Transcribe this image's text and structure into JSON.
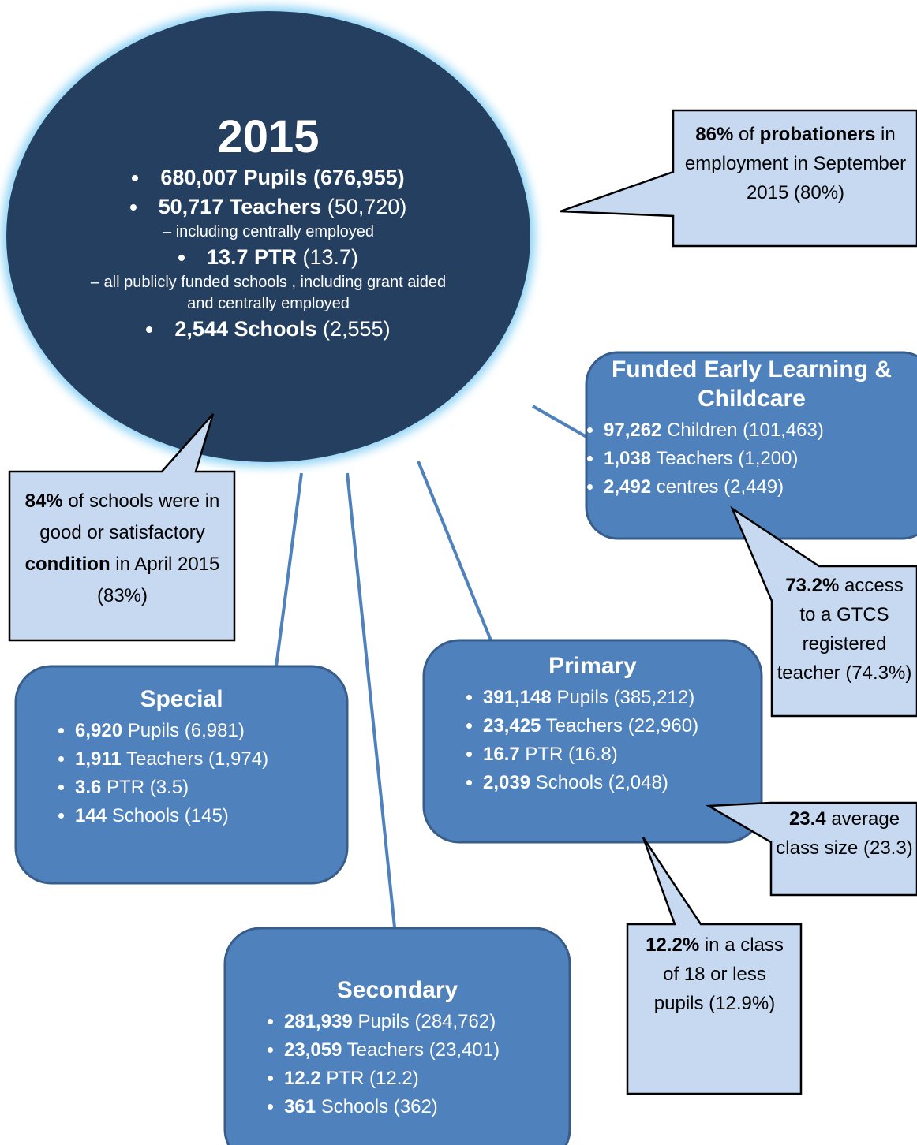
{
  "center": {
    "title": "2015",
    "items": [
      {
        "strong": "680,007 Pupils",
        "rest": "(676,955)"
      },
      {
        "strong": "50,717 Teachers",
        "rest": "(50,720)",
        "note": "– including centrally employed"
      },
      {
        "strong": "13.7 PTR",
        "rest": "(13.7)",
        "note": "– all publicly funded schools , including grant aided and centrally employed"
      },
      {
        "strong": "2,544 Schools",
        "rest": "(2,555)"
      }
    ]
  },
  "boxes": {
    "early_learning": {
      "title": "Funded Early Learning & Childcare",
      "items": [
        {
          "strong": "97,262",
          "rest": "Children (101,463)"
        },
        {
          "strong": "1,038",
          "rest": "Teachers (1,200)"
        },
        {
          "strong": "2,492",
          "rest": "centres (2,449)"
        }
      ]
    },
    "special": {
      "title": "Special",
      "items": [
        {
          "strong": "6,920",
          "rest": "Pupils (6,981)"
        },
        {
          "strong": "1,911",
          "rest": "Teachers (1,974)"
        },
        {
          "strong": "3.6",
          "rest": "PTR (3.5)"
        },
        {
          "strong": "144",
          "rest": "Schools (145)"
        }
      ]
    },
    "primary": {
      "title": "Primary",
      "items": [
        {
          "strong": "391,148",
          "rest": "Pupils (385,212)"
        },
        {
          "strong": "23,425",
          "rest": "Teachers  (22,960)"
        },
        {
          "strong": "16.7",
          "rest": "PTR (16.8)"
        },
        {
          "strong": "2,039",
          "rest": "Schools (2,048)"
        }
      ]
    },
    "secondary": {
      "title": "Secondary",
      "items": [
        {
          "strong": "281,939",
          "rest": "Pupils (284,762)"
        },
        {
          "strong": "23,059",
          "rest": "Teachers (23,401)"
        },
        {
          "strong": "12.2",
          "rest": "PTR (12.2)"
        },
        {
          "strong": "361",
          "rest": "Schools (362)"
        }
      ]
    }
  },
  "callouts": {
    "probationers": {
      "strong": "86%",
      "mid": "of",
      "strong2": "probationers",
      "rest": "in employment in September 2015 (80%)"
    },
    "schools_condition": {
      "strong": "84%",
      "mid": "of schools were in good or satisfactory",
      "strong2": "condition",
      "rest": "in April 2015 (83%)"
    },
    "gtcs": {
      "strong": "73.2%",
      "rest": "access to a GTCS registered teacher (74.3%)"
    },
    "class_size": {
      "strong": "23.4",
      "rest": "average class size (23.3)"
    },
    "small_class": {
      "strong": "12.2%",
      "rest": "in a class of 18 or less pupils (12.9%)"
    }
  }
}
